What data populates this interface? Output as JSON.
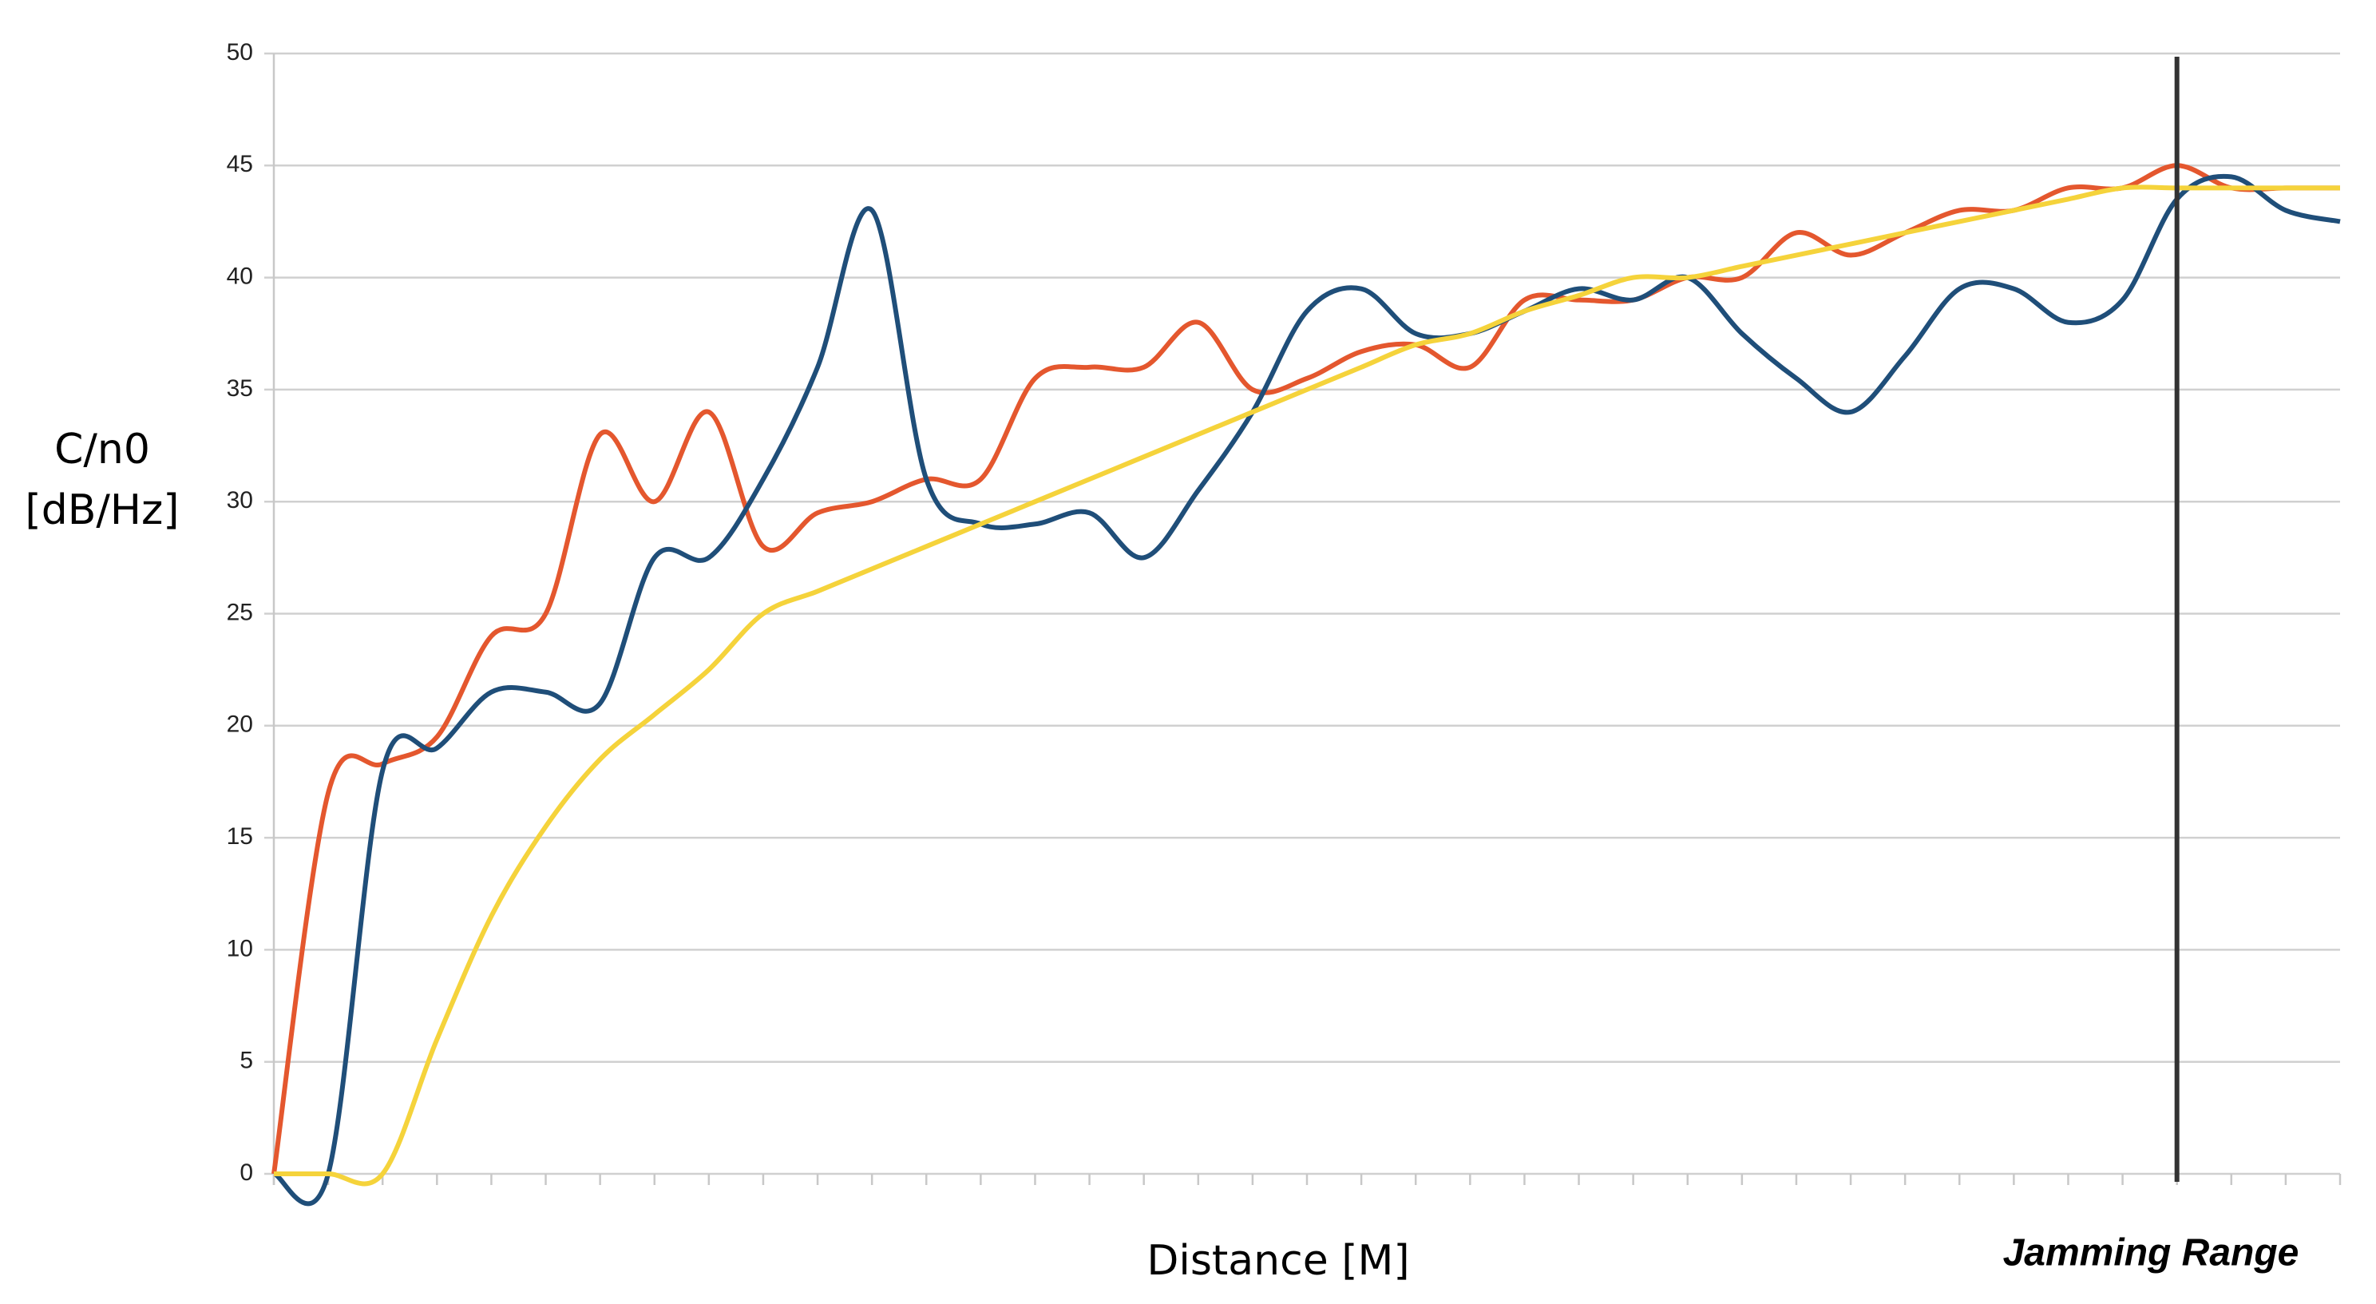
{
  "chart_data": {
    "type": "line",
    "y_label": [
      "C/n0",
      "[dB/Hz]"
    ],
    "x_label": "Distance [M]",
    "categories": [
      null,
      null,
      null,
      null,
      null,
      null,
      null,
      null,
      null,
      null,
      null,
      null,
      null,
      null,
      null,
      null,
      null,
      null,
      null,
      null,
      null,
      null,
      null,
      null,
      null,
      null,
      null,
      null,
      null,
      null,
      null,
      null,
      null,
      null,
      null,
      null,
      null,
      null,
      null
    ],
    "series": [
      {
        "color": "#e4572e",
        "values": [
          0,
          17,
          18.3,
          19.5,
          24,
          25,
          33,
          30,
          34,
          28,
          29.5,
          30,
          31,
          31,
          35.5,
          36,
          36,
          38,
          35,
          35.5,
          36.7,
          37,
          36,
          39,
          39,
          39,
          40,
          40,
          42,
          41,
          42,
          43,
          43,
          44,
          44,
          45,
          44,
          44,
          44
        ]
      },
      {
        "color": "#1f4e79",
        "values": [
          0,
          0,
          18,
          19,
          21.5,
          21.5,
          21,
          27.5,
          27.5,
          31,
          36,
          43,
          31,
          29,
          29,
          29.5,
          27.5,
          30.5,
          34,
          38.5,
          39.5,
          37.5,
          37.5,
          38.5,
          39.5,
          39,
          40,
          37.5,
          35.5,
          34,
          36.5,
          39.5,
          39.5,
          38,
          39,
          43.5,
          44.5,
          43,
          42.5
        ]
      },
      {
        "color": "#f5d33b",
        "values": [
          0,
          0,
          0,
          6,
          11.5,
          15.5,
          18.5,
          20.5,
          22.5,
          25,
          26,
          27,
          28,
          29,
          30,
          31,
          32,
          33,
          34,
          35,
          36,
          37,
          37.5,
          38.5,
          39.2,
          40,
          40,
          40.5,
          41,
          41.5,
          42,
          42.5,
          43,
          43.5,
          44,
          44,
          44,
          44,
          44
        ]
      }
    ],
    "marker_line": {
      "index": 35,
      "label": "Jamming Range",
      "color": "#333333"
    },
    "ylim": [
      0,
      50
    ],
    "yticks": [
      0,
      5,
      10,
      15,
      20,
      25,
      30,
      35,
      40,
      45,
      50
    ],
    "grid": true
  }
}
